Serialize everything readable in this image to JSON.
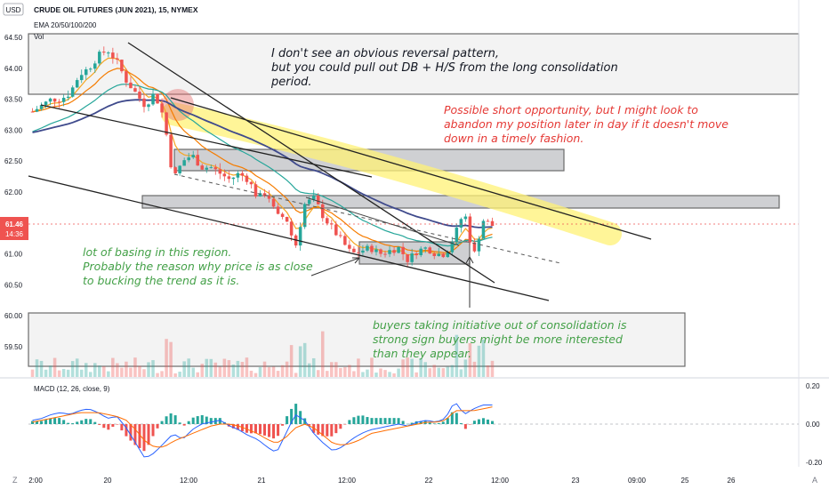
{
  "header": {
    "currency": "USD",
    "symbol_title": "CRUDE OIL FUTURES (JUN 2021), 15, NYMEX",
    "ema_label": "EMA 20/50/100/200",
    "vol_label": "Vol"
  },
  "price_badge": {
    "price": "61.46",
    "countdown": "14:36"
  },
  "macd_label": "MACD (12, 26, close, 9)",
  "bottom_left": "Z",
  "bottom_right": "A",
  "annotations": {
    "top": [
      "I don't see an obvious reversal pattern,",
      "but you could pull out DB + H/S from the long consolidation",
      "period."
    ],
    "right": [
      "Possible short opportunity, but I might look to",
      "abandon my position later in day if it doesn't move",
      "down in a timely fashion."
    ],
    "left": [
      "lot of basing in this region.",
      "Probably the reason why price is as close",
      "to bucking the trend as it is."
    ],
    "bottom": [
      "buyers taking initiative out of consolidation is",
      "strong sign buyers might be more interested",
      "than they appear."
    ]
  },
  "colors": {
    "candle_up": "#26a69a",
    "candle_down": "#ef5350",
    "ema20": "#f5a623",
    "ema50": "#f57c00",
    "ema100": "#26a69a",
    "ema200": "#3f4a8c",
    "anno_top": "#131722",
    "anno_right": "#e53935",
    "anno_green": "#43a047",
    "highlight": "#fff176"
  },
  "chart_data": [
    {
      "type": "candlestick",
      "title": "CRUDE OIL FUTURES (JUN 2021), 15, NYMEX",
      "x_ticks": [
        "2:00",
        "20",
        "12:00",
        "21",
        "12:00",
        "22",
        "12:00",
        "23",
        "09:00",
        "25",
        "26"
      ],
      "y_ticks": [
        64.5,
        64.0,
        63.5,
        63.0,
        62.5,
        62.0,
        61.5,
        61.0,
        60.5,
        60.0,
        59.5
      ],
      "ylim": [
        59.2,
        64.6
      ],
      "last_price": 61.46,
      "indicators": [
        "EMA 20",
        "EMA 50",
        "EMA 100",
        "EMA 200",
        "Vol"
      ],
      "close_path": [
        63.3,
        63.4,
        63.5,
        63.5,
        63.6,
        63.9,
        64.0,
        64.2,
        64.3,
        64.1,
        63.8,
        63.6,
        63.4,
        63.6,
        63.2,
        62.2,
        62.5,
        62.6,
        62.4,
        62.4,
        62.3,
        62.2,
        62.3,
        62.2,
        61.9,
        62.0,
        61.6,
        61.6,
        61.1,
        61.8,
        61.9,
        61.6,
        61.4,
        61.2,
        61.0,
        61.05,
        61.1,
        61.0,
        61.05,
        61.1,
        60.9,
        61.05,
        61.1,
        61.0,
        61.0,
        61.3,
        61.7,
        60.95,
        61.55,
        61.46
      ]
    },
    {
      "type": "macd",
      "title": "MACD (12, 26, close, 9)",
      "y_ticks": [
        0.2,
        0.0,
        -0.2
      ],
      "ylim": [
        -0.22,
        0.22
      ],
      "macd_path": [
        0.02,
        0.03,
        0.05,
        0.06,
        0.05,
        0.07,
        0.08,
        0.06,
        0.03,
        0.04,
        -0.02,
        -0.1,
        -0.18,
        -0.15,
        -0.1,
        -0.05,
        -0.08,
        -0.03,
        0.0,
        0.01,
        0.02,
        -0.01,
        -0.03,
        -0.06,
        -0.08,
        -0.12,
        -0.15,
        -0.05,
        0.05,
        0.02,
        -0.05,
        -0.1,
        -0.14,
        -0.12,
        -0.08,
        -0.05,
        -0.03,
        -0.02,
        -0.01,
        0.0,
        -0.01,
        0.01,
        0.02,
        0.01,
        0.03,
        0.12,
        0.05,
        0.08,
        0.1,
        0.1
      ],
      "signal_path": [
        0.01,
        0.02,
        0.03,
        0.04,
        0.05,
        0.06,
        0.06,
        0.06,
        0.05,
        0.04,
        0.02,
        -0.03,
        -0.09,
        -0.12,
        -0.12,
        -0.09,
        -0.07,
        -0.05,
        -0.03,
        -0.01,
        0.0,
        0.0,
        -0.01,
        -0.03,
        -0.05,
        -0.08,
        -0.1,
        -0.07,
        -0.02,
        0.0,
        -0.02,
        -0.06,
        -0.1,
        -0.11,
        -0.1,
        -0.08,
        -0.05,
        -0.04,
        -0.03,
        -0.02,
        -0.01,
        0.0,
        0.01,
        0.01,
        0.02,
        0.07,
        0.07,
        0.07,
        0.08,
        0.09
      ]
    }
  ]
}
